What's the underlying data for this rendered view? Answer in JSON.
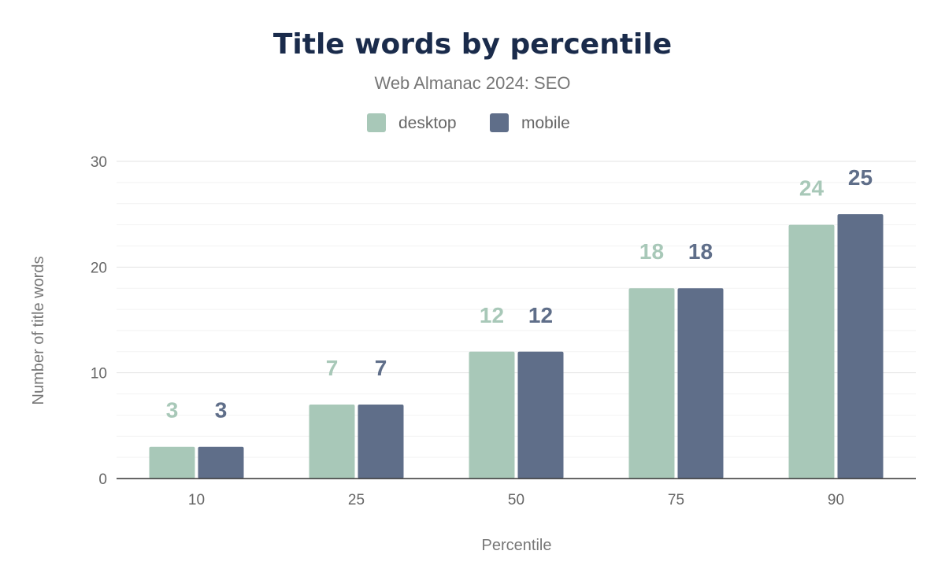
{
  "chart_data": {
    "type": "bar",
    "title": "Title words by percentile",
    "subtitle": "Web Almanac 2024: SEO",
    "xlabel": "Percentile",
    "ylabel": "Number of title words",
    "categories": [
      "10",
      "25",
      "50",
      "75",
      "90"
    ],
    "series": [
      {
        "name": "desktop",
        "values": [
          3,
          7,
          12,
          18,
          24
        ],
        "color": "#a8c8b8"
      },
      {
        "name": "mobile",
        "values": [
          3,
          7,
          12,
          18,
          25
        ],
        "color": "#5f6e89"
      }
    ],
    "ylim": [
      0,
      30
    ],
    "yticks": [
      "0",
      "10",
      "20",
      "30"
    ],
    "grid": true,
    "legend": "top-center",
    "data_labels": true
  }
}
